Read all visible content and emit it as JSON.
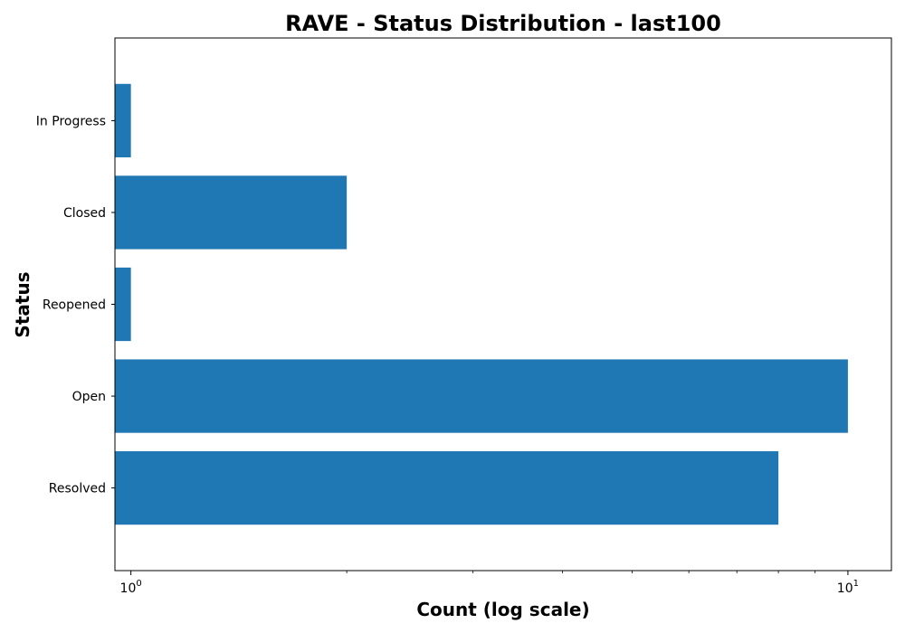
{
  "chart_data": {
    "type": "bar",
    "orientation": "horizontal",
    "title": "RAVE - Status Distribution - last100",
    "xlabel": "Count (log scale)",
    "ylabel": "Status",
    "x_scale": "log",
    "xlim": [
      0.95,
      11.5
    ],
    "categories": [
      "Resolved",
      "Open",
      "Reopened",
      "Closed",
      "In Progress"
    ],
    "values": [
      8,
      10,
      1,
      2,
      1
    ],
    "bar_color": "#1f77b4",
    "grid": false,
    "legend": "none",
    "x_major_ticks": [
      {
        "value": 1,
        "base": "10",
        "exp": "0"
      },
      {
        "value": 10,
        "base": "10",
        "exp": "1"
      }
    ],
    "x_minor_ticks": [
      2,
      3,
      4,
      5,
      6,
      7,
      8,
      9
    ]
  }
}
